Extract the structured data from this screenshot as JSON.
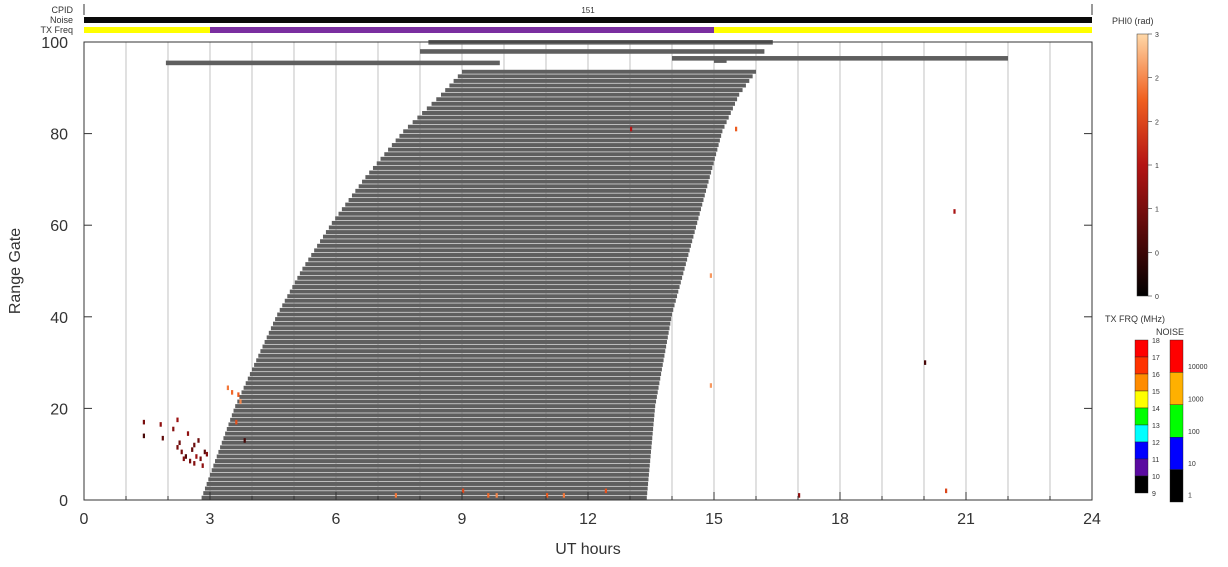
{
  "header": {
    "cpid_label": "CPID",
    "noise_label": "Noise",
    "txfreq_label": "TX Freq",
    "cpid_value": "151"
  },
  "colorbars": {
    "phi0": {
      "title": "PHI0 (rad)",
      "ticks": [
        "3",
        "2",
        "2",
        "1",
        "1",
        "0",
        "0"
      ]
    },
    "txfrq": {
      "title": "TX FRQ (MHz)",
      "ticks": [
        "18",
        "17",
        "16",
        "15",
        "14",
        "13",
        "12",
        "11",
        "10",
        "9"
      ],
      "colors": [
        "#ff0000",
        "#ff3300",
        "#ff8c00",
        "#ffff00",
        "#00ff00",
        "#00ffff",
        "#0000ff",
        "#5a0aa0",
        "#000000"
      ]
    },
    "noise": {
      "title": "NOISE",
      "ticks": [
        "10000",
        "1000",
        "100",
        "10",
        "1"
      ],
      "colors": [
        "#ff0000",
        "#ffb000",
        "#00ff00",
        "#0000ff",
        "#000000"
      ]
    }
  },
  "chart_data": {
    "type": "heatmap",
    "xlabel": "UT hours",
    "ylabel": "Range Gate",
    "xlim": [
      0,
      24
    ],
    "ylim": [
      0,
      100
    ],
    "x_ticks": [
      0,
      3,
      6,
      9,
      12,
      15,
      18,
      21,
      24
    ],
    "y_ticks": [
      0,
      20,
      40,
      60,
      80,
      100
    ],
    "grid": "vertical lines every 1 hour",
    "ground_scatter_color": "#5f5f5f",
    "ground_scatter_region": {
      "gate_min": 0,
      "gate_max": 93,
      "edge_start": [
        [
          0,
          2.8
        ],
        [
          10,
          3.2
        ],
        [
          20,
          3.6
        ],
        [
          30,
          4.1
        ],
        [
          40,
          4.6
        ],
        [
          50,
          5.2
        ],
        [
          60,
          5.9
        ],
        [
          70,
          6.7
        ],
        [
          80,
          7.6
        ],
        [
          88,
          8.5
        ],
        [
          93,
          9.0
        ]
      ],
      "edge_end": [
        [
          0,
          13.4
        ],
        [
          10,
          13.5
        ],
        [
          20,
          13.6
        ],
        [
          30,
          13.8
        ],
        [
          40,
          14.0
        ],
        [
          50,
          14.3
        ],
        [
          60,
          14.6
        ],
        [
          70,
          14.9
        ],
        [
          80,
          15.2
        ],
        [
          88,
          15.6
        ],
        [
          93,
          16.0
        ]
      ]
    },
    "ground_scatter_bands": [
      {
        "gate": 95,
        "start": 1.95,
        "end": 9.9
      },
      {
        "gate": 96,
        "start": 14.0,
        "end": 22.0
      },
      {
        "gate": 95.5,
        "start": 15.0,
        "end": 15.3
      },
      {
        "gate": 97.5,
        "start": 8.0,
        "end": 16.2
      },
      {
        "gate": 99.5,
        "start": 8.2,
        "end": 16.4
      }
    ],
    "tx_freq_segments": [
      {
        "start": 0,
        "end": 3.0,
        "color": "#ffff00"
      },
      {
        "start": 3.0,
        "end": 15.0,
        "color": "#7a2fa0"
      },
      {
        "start": 15.0,
        "end": 24,
        "color": "#ffff00"
      }
    ],
    "noise_color": "#0a0a0a",
    "phi0_points": [
      {
        "t": 1.4,
        "g": 16.5,
        "v": 1.0
      },
      {
        "t": 1.4,
        "g": 13.5,
        "v": 0.6
      },
      {
        "t": 1.8,
        "g": 16.0,
        "v": 1.2
      },
      {
        "t": 1.85,
        "g": 13.0,
        "v": 0.8
      },
      {
        "t": 2.1,
        "g": 15.0,
        "v": 1.1
      },
      {
        "t": 2.2,
        "g": 17.0,
        "v": 1.3
      },
      {
        "t": 2.25,
        "g": 12.0,
        "v": 0.9
      },
      {
        "t": 2.3,
        "g": 10.0,
        "v": 1.0
      },
      {
        "t": 2.35,
        "g": 8.5,
        "v": 1.1
      },
      {
        "t": 2.4,
        "g": 9.0,
        "v": 0.7
      },
      {
        "t": 2.45,
        "g": 14.0,
        "v": 1.2
      },
      {
        "t": 2.5,
        "g": 8.0,
        "v": 1.0
      },
      {
        "t": 2.55,
        "g": 10.5,
        "v": 0.8
      },
      {
        "t": 2.6,
        "g": 7.5,
        "v": 1.1
      },
      {
        "t": 2.65,
        "g": 9.0,
        "v": 1.3
      },
      {
        "t": 2.7,
        "g": 12.5,
        "v": 0.9
      },
      {
        "t": 2.75,
        "g": 8.5,
        "v": 1.0
      },
      {
        "t": 2.8,
        "g": 7.0,
        "v": 1.2
      },
      {
        "t": 2.85,
        "g": 10.0,
        "v": 0.8
      },
      {
        "t": 2.9,
        "g": 9.5,
        "v": 1.1
      },
      {
        "t": 2.2,
        "g": 11.0,
        "v": 1.0
      },
      {
        "t": 2.6,
        "g": 11.5,
        "v": 0.9
      },
      {
        "t": 3.4,
        "g": 24.0,
        "v": 2.4
      },
      {
        "t": 3.5,
        "g": 23.0,
        "v": 2.3
      },
      {
        "t": 3.65,
        "g": 22.5,
        "v": 2.2
      },
      {
        "t": 3.7,
        "g": 21.0,
        "v": 2.5
      },
      {
        "t": 3.6,
        "g": 16.5,
        "v": 2.1
      },
      {
        "t": 3.8,
        "g": 12.5,
        "v": 0.6
      },
      {
        "t": 13.0,
        "g": 80.5,
        "v": 1.5
      },
      {
        "t": 15.5,
        "g": 80.5,
        "v": 2.2
      },
      {
        "t": 14.9,
        "g": 48.5,
        "v": 2.6
      },
      {
        "t": 14.9,
        "g": 24.5,
        "v": 2.6
      },
      {
        "t": 20.7,
        "g": 62.5,
        "v": 1.4
      },
      {
        "t": 20.0,
        "g": 29.5,
        "v": 0.6
      },
      {
        "t": 20.5,
        "g": 1.5,
        "v": 2.0
      },
      {
        "t": 17.0,
        "g": 0.5,
        "v": 1.2
      },
      {
        "t": 7.4,
        "g": 0.5,
        "v": 2.4
      },
      {
        "t": 9.0,
        "g": 1.5,
        "v": 2.0
      },
      {
        "t": 9.6,
        "g": 0.5,
        "v": 2.3
      },
      {
        "t": 9.8,
        "g": 0.5,
        "v": 2.5
      },
      {
        "t": 11.0,
        "g": 0.5,
        "v": 2.2
      },
      {
        "t": 11.4,
        "g": 0.5,
        "v": 2.4
      },
      {
        "t": 12.4,
        "g": 1.5,
        "v": 2.1
      }
    ]
  }
}
